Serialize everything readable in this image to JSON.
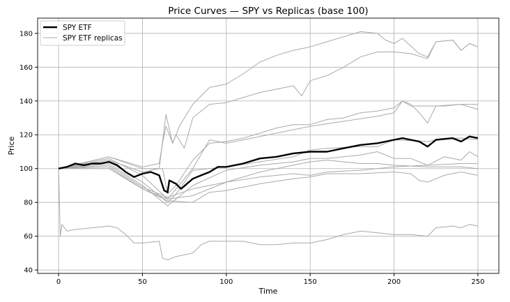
{
  "chart_data": {
    "type": "line",
    "title": "Price Curves — SPY vs Replicas (base 100)",
    "xlabel": "Time",
    "ylabel": "Price",
    "xlim": [
      -12.5,
      262.5
    ],
    "ylim": [
      38,
      189
    ],
    "xticks": [
      0,
      50,
      100,
      150,
      200,
      250
    ],
    "yticks": [
      40,
      60,
      80,
      100,
      120,
      140,
      160,
      180
    ],
    "grid": true,
    "legend": {
      "placement": "top-left",
      "entries": [
        "SPY ETF",
        "SPY ETF replicas"
      ]
    },
    "colors": {
      "main": "#000000",
      "replica": "#a9a9a9",
      "grid": "#b0b0b0"
    },
    "main_series": {
      "name": "SPY ETF",
      "points": [
        [
          0,
          100
        ],
        [
          5,
          101
        ],
        [
          10,
          103
        ],
        [
          15,
          102
        ],
        [
          20,
          103
        ],
        [
          25,
          103
        ],
        [
          30,
          104
        ],
        [
          35,
          102
        ],
        [
          40,
          98
        ],
        [
          45,
          95
        ],
        [
          50,
          97
        ],
        [
          55,
          98
        ],
        [
          60,
          96
        ],
        [
          63,
          87
        ],
        [
          65,
          86
        ],
        [
          66,
          93
        ],
        [
          70,
          91
        ],
        [
          73,
          88
        ],
        [
          80,
          94
        ],
        [
          85,
          96
        ],
        [
          90,
          98
        ],
        [
          95,
          101
        ],
        [
          100,
          101
        ],
        [
          110,
          103
        ],
        [
          120,
          106
        ],
        [
          130,
          107
        ],
        [
          140,
          109
        ],
        [
          150,
          110
        ],
        [
          160,
          110
        ],
        [
          170,
          112
        ],
        [
          180,
          114
        ],
        [
          190,
          115
        ],
        [
          200,
          117
        ],
        [
          205,
          118
        ],
        [
          210,
          117
        ],
        [
          215,
          116
        ],
        [
          220,
          113
        ],
        [
          225,
          117
        ],
        [
          235,
          118
        ],
        [
          240,
          116
        ],
        [
          245,
          119
        ],
        [
          250,
          118
        ]
      ]
    },
    "replica_series_name": "SPY ETF replicas",
    "replicas": [
      [
        [
          0,
          100
        ],
        [
          30,
          107
        ],
        [
          50,
          101
        ],
        [
          60,
          103
        ],
        [
          62,
          115
        ],
        [
          64,
          125
        ],
        [
          68,
          115
        ],
        [
          72,
          125
        ],
        [
          80,
          138
        ],
        [
          90,
          148
        ],
        [
          100,
          150
        ],
        [
          110,
          156
        ],
        [
          120,
          163
        ],
        [
          130,
          167
        ],
        [
          140,
          170
        ],
        [
          150,
          172
        ],
        [
          160,
          175
        ],
        [
          170,
          178
        ],
        [
          180,
          181
        ],
        [
          190,
          180
        ],
        [
          195,
          176
        ],
        [
          200,
          174
        ],
        [
          205,
          177
        ],
        [
          215,
          168
        ],
        [
          220,
          166
        ],
        [
          225,
          175
        ],
        [
          235,
          176
        ],
        [
          240,
          170
        ],
        [
          245,
          174
        ],
        [
          250,
          172
        ]
      ],
      [
        [
          0,
          100
        ],
        [
          30,
          105
        ],
        [
          50,
          98
        ],
        [
          60,
          100
        ],
        [
          64,
          132
        ],
        [
          68,
          115
        ],
        [
          70,
          120
        ],
        [
          75,
          112
        ],
        [
          80,
          130
        ],
        [
          90,
          138
        ],
        [
          100,
          139
        ],
        [
          110,
          142
        ],
        [
          120,
          145
        ],
        [
          130,
          147
        ],
        [
          140,
          149
        ],
        [
          145,
          143
        ],
        [
          150,
          152
        ],
        [
          160,
          155
        ],
        [
          170,
          160
        ],
        [
          180,
          166
        ],
        [
          190,
          169
        ],
        [
          200,
          169
        ],
        [
          210,
          168
        ],
        [
          220,
          165
        ],
        [
          225,
          175
        ],
        [
          235,
          176
        ],
        [
          240,
          170
        ],
        [
          245,
          174
        ],
        [
          250,
          172
        ]
      ],
      [
        [
          0,
          100
        ],
        [
          30,
          107
        ],
        [
          50,
          100
        ],
        [
          62,
          100
        ],
        [
          65,
          85
        ],
        [
          70,
          90
        ],
        [
          80,
          105
        ],
        [
          90,
          115
        ],
        [
          100,
          116
        ],
        [
          110,
          118
        ],
        [
          120,
          121
        ],
        [
          130,
          124
        ],
        [
          140,
          126
        ],
        [
          150,
          126
        ],
        [
          160,
          129
        ],
        [
          170,
          130
        ],
        [
          180,
          133
        ],
        [
          190,
          134
        ],
        [
          200,
          136
        ],
        [
          205,
          140
        ],
        [
          210,
          137
        ],
        [
          220,
          137
        ],
        [
          230,
          137
        ],
        [
          240,
          138
        ],
        [
          250,
          138
        ]
      ],
      [
        [
          0,
          100
        ],
        [
          30,
          106
        ],
        [
          50,
          96
        ],
        [
          65,
          82
        ],
        [
          80,
          100
        ],
        [
          90,
          117
        ],
        [
          100,
          115
        ],
        [
          120,
          119
        ],
        [
          150,
          125
        ],
        [
          170,
          128
        ],
        [
          190,
          131
        ],
        [
          200,
          133
        ],
        [
          205,
          140
        ],
        [
          210,
          138
        ],
        [
          215,
          133
        ],
        [
          220,
          127
        ],
        [
          225,
          137
        ],
        [
          240,
          138
        ],
        [
          250,
          135
        ]
      ],
      [
        [
          0,
          100
        ],
        [
          30,
          104
        ],
        [
          50,
          92
        ],
        [
          65,
          80
        ],
        [
          70,
          85
        ],
        [
          80,
          99
        ],
        [
          100,
          101
        ],
        [
          120,
          104
        ],
        [
          140,
          107
        ],
        [
          150,
          111
        ],
        [
          160,
          112
        ],
        [
          180,
          113
        ],
        [
          190,
          113
        ],
        [
          200,
          117
        ],
        [
          220,
          116
        ],
        [
          230,
          118
        ],
        [
          240,
          118
        ],
        [
          250,
          117
        ]
      ],
      [
        [
          0,
          100
        ],
        [
          30,
          103
        ],
        [
          50,
          90
        ],
        [
          65,
          78
        ],
        [
          80,
          90
        ],
        [
          100,
          99
        ],
        [
          120,
          102
        ],
        [
          140,
          104
        ],
        [
          150,
          106
        ],
        [
          160,
          106
        ],
        [
          180,
          108
        ],
        [
          190,
          110
        ],
        [
          200,
          106
        ],
        [
          210,
          106
        ],
        [
          220,
          102
        ],
        [
          230,
          107
        ],
        [
          240,
          105
        ],
        [
          245,
          110
        ],
        [
          250,
          107
        ]
      ],
      [
        [
          0,
          100
        ],
        [
          30,
          102
        ],
        [
          50,
          89
        ],
        [
          65,
          83
        ],
        [
          80,
          88
        ],
        [
          100,
          92
        ],
        [
          120,
          98
        ],
        [
          140,
          102
        ],
        [
          150,
          104
        ],
        [
          160,
          105
        ],
        [
          180,
          103
        ],
        [
          190,
          103
        ],
        [
          200,
          102
        ],
        [
          220,
          101
        ],
        [
          240,
          101
        ],
        [
          250,
          100
        ]
      ],
      [
        [
          0,
          100
        ],
        [
          30,
          101
        ],
        [
          50,
          88
        ],
        [
          65,
          82
        ],
        [
          80,
          84
        ],
        [
          100,
          92
        ],
        [
          120,
          95
        ],
        [
          140,
          97
        ],
        [
          150,
          96
        ],
        [
          160,
          98
        ],
        [
          180,
          99
        ],
        [
          200,
          101
        ],
        [
          220,
          102
        ],
        [
          240,
          103
        ],
        [
          250,
          103
        ]
      ],
      [
        [
          0,
          100
        ],
        [
          30,
          100
        ],
        [
          50,
          88
        ],
        [
          65,
          81
        ],
        [
          80,
          80
        ],
        [
          90,
          86
        ],
        [
          100,
          87
        ],
        [
          120,
          91
        ],
        [
          140,
          94
        ],
        [
          150,
          95
        ],
        [
          160,
          97
        ],
        [
          180,
          97
        ],
        [
          200,
          98
        ],
        [
          210,
          97
        ],
        [
          215,
          93
        ],
        [
          220,
          92
        ],
        [
          230,
          96
        ],
        [
          240,
          98
        ],
        [
          250,
          96
        ]
      ],
      [
        [
          0,
          100
        ],
        [
          1,
          60
        ],
        [
          2,
          67
        ],
        [
          5,
          63
        ],
        [
          10,
          64
        ],
        [
          20,
          65
        ],
        [
          30,
          66
        ],
        [
          35,
          65
        ],
        [
          40,
          61
        ],
        [
          45,
          56
        ],
        [
          50,
          56
        ],
        [
          60,
          57
        ],
        [
          62,
          47
        ],
        [
          65,
          46
        ],
        [
          70,
          48
        ],
        [
          80,
          50
        ],
        [
          85,
          55
        ],
        [
          90,
          57
        ],
        [
          100,
          57
        ],
        [
          110,
          57
        ],
        [
          120,
          55
        ],
        [
          130,
          55
        ],
        [
          140,
          56
        ],
        [
          150,
          56
        ],
        [
          160,
          58
        ],
        [
          170,
          61
        ],
        [
          180,
          63
        ],
        [
          190,
          62
        ],
        [
          200,
          61
        ],
        [
          210,
          61
        ],
        [
          220,
          60
        ],
        [
          225,
          65
        ],
        [
          235,
          66
        ],
        [
          240,
          65
        ],
        [
          245,
          67
        ],
        [
          250,
          66
        ]
      ]
    ]
  }
}
